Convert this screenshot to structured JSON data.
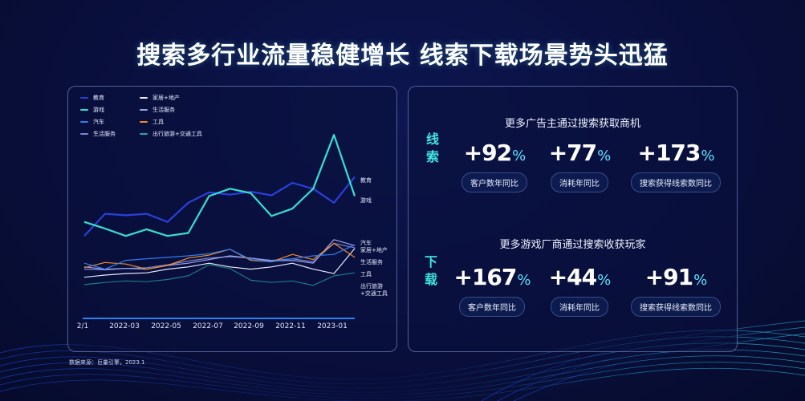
{
  "title": "搜索多行业流量稳健增长  线索下载场景势头迅猛",
  "source": "数据来源：巨量引擎，2023.1",
  "colors": {
    "教育": "#2b3fd9",
    "游戏": "#35e0d0",
    "汽车": "#2f7ef0",
    "生活服务": "#7b86d8",
    "家居+地产": "#e6e9ff",
    "生活服务2": "#9aa3e8",
    "工具": "#f08a2a",
    "出行旅游+交通工具": "#2aa6a6"
  },
  "legend": [
    {
      "label": "教育",
      "color": "#2b3fd9"
    },
    {
      "label": "家居+地产",
      "color": "#e6e9ff"
    },
    {
      "label": "游戏",
      "color": "#35e0d0"
    },
    {
      "label": "生活服务",
      "color": "#9aa3e8"
    },
    {
      "label": "汽车",
      "color": "#2f7ef0"
    },
    {
      "label": "工具",
      "color": "#f08a2a"
    },
    {
      "label": "生活服务",
      "color": "#7b86d8"
    },
    {
      "label": "出行旅游+交通工具",
      "color": "#2aa6a6"
    }
  ],
  "end_labels": {
    "edu": "教育",
    "game": "游戏",
    "car": "汽车",
    "home": "家居+地产",
    "life": "生活服务",
    "tool": "工具",
    "travel1": "出行旅游",
    "travel2": "+交通工具"
  },
  "x_ticks": [
    "2/1",
    "2022-03",
    "2022-05",
    "2022-07",
    "2022-09",
    "2022-11",
    "2023-01"
  ],
  "chart_data": {
    "type": "line",
    "title": "",
    "xlabel": "",
    "ylabel": "",
    "x": [
      "2022-01",
      "2022-02",
      "2022-03",
      "2022-04",
      "2022-05",
      "2022-06",
      "2022-07",
      "2022-08",
      "2022-09",
      "2022-10",
      "2022-11",
      "2022-12",
      "2023-01",
      "2023-02"
    ],
    "x_tick_labels": [
      "2/1",
      "2022-03",
      "2022-05",
      "2022-07",
      "2022-09",
      "2022-11",
      "2023-01"
    ],
    "grid": false,
    "legend_position": "top-left",
    "note": "Relative index values (no y-axis shown); estimated from line heights, 0 = baseline",
    "series": [
      {
        "name": "教育",
        "values": [
          90,
          120,
          118,
          120,
          109,
          135,
          149,
          146,
          150,
          145,
          162,
          154,
          135,
          170
        ]
      },
      {
        "name": "游戏",
        "values": [
          109,
          100,
          90,
          99,
          90,
          94,
          144,
          154,
          148,
          117,
          127,
          154,
          227,
          144
        ]
      },
      {
        "name": "汽车",
        "values": [
          53,
          45,
          57,
          59,
          61,
          63,
          66,
          72,
          58,
          55,
          59,
          63,
          65,
          78
        ]
      },
      {
        "name": "家居+地产",
        "values": [
          34,
          37,
          39,
          40,
          45,
          48,
          53,
          48,
          45,
          48,
          53,
          45,
          39,
          73
        ]
      },
      {
        "name": "生活服务",
        "values": [
          48,
          45,
          46,
          45,
          50,
          53,
          58,
          63,
          60,
          56,
          57,
          53,
          85,
          77
        ]
      },
      {
        "name": "工具",
        "values": [
          47,
          54,
          52,
          45,
          50,
          60,
          64,
          72,
          57,
          55,
          65,
          58,
          80,
          61
        ]
      },
      {
        "name": "生活服务(2)",
        "values": [
          45,
          44,
          46,
          47,
          51,
          56,
          60,
          62,
          60,
          57,
          59,
          55,
          80,
          74
        ]
      },
      {
        "name": "出行旅游+交通工具",
        "values": [
          24,
          27,
          29,
          28,
          31,
          36,
          51,
          46,
          30,
          27,
          29,
          23,
          36,
          40
        ]
      }
    ]
  },
  "right": {
    "sections": [
      {
        "vertical_label": [
          "线",
          "索"
        ],
        "heading": "更多广告主通过搜索获取商机",
        "metrics": [
          {
            "value": "+92",
            "unit": "%",
            "label": "客户数年同比"
          },
          {
            "value": "+77",
            "unit": "%",
            "label": "消耗年同比"
          },
          {
            "value": "+173",
            "unit": "%",
            "label": "搜索获得线索数同比"
          }
        ]
      },
      {
        "vertical_label": [
          "下",
          "载"
        ],
        "heading": "更多游戏厂商通过搜索收获玩家",
        "metrics": [
          {
            "value": "+167",
            "unit": "%",
            "label": "客户数年同比"
          },
          {
            "value": "+44",
            "unit": "%",
            "label": "消耗年同比"
          },
          {
            "value": "+91",
            "unit": "%",
            "label": "搜索获得线索数同比"
          }
        ]
      }
    ]
  }
}
